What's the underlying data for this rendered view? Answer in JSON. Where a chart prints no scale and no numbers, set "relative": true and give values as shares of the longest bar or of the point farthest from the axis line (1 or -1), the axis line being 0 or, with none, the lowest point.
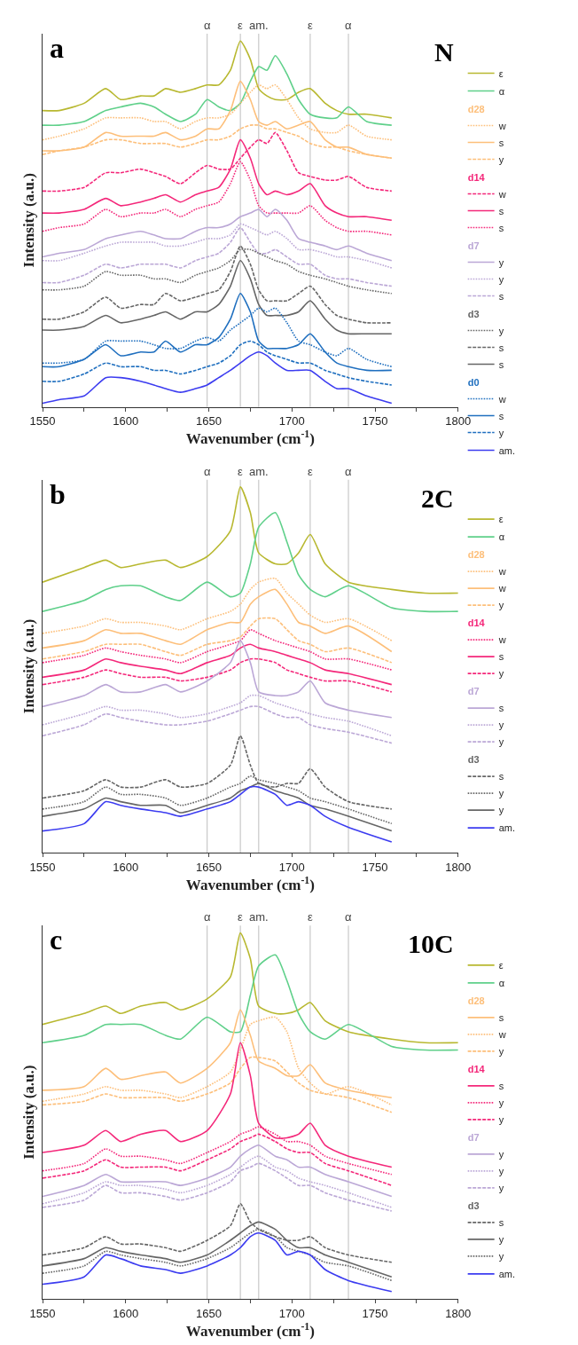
{
  "chart_data": [
    {
      "type": "line",
      "title": "a",
      "subtitle": "N",
      "xlabel": "Wavenumber (cm$^{-1}$)",
      "ylabel": "Intensity (a.u.)",
      "relative": true,
      "legend": "right",
      "grid": false,
      "marker": "none",
      "x": [
        1550,
        1560,
        1575,
        1588,
        1597,
        1609,
        1617,
        1624,
        1633,
        1642,
        1649,
        1656,
        1663,
        1669,
        1675,
        1680,
        1685,
        1690,
        1697,
        1704,
        1711,
        1720,
        1727,
        1734,
        1745,
        1760
      ],
      "xlim": [
        1550,
        1800
      ],
      "xticks": [
        1550,
        {
          "value": 1575,
          "label": null
        },
        1600,
        {
          "value": 1625,
          "label": null
        },
        1650,
        {
          "value": 1675,
          "label": null
        },
        1700,
        {
          "value": 1725,
          "label": null
        },
        1750,
        {
          "value": 1775,
          "label": null
        },
        1800
      ],
      "ref_lines": [
        {
          "axis": "x",
          "value": 1649,
          "label": "α",
          "color": "#c8c8c8"
        },
        {
          "axis": "x",
          "value": 1669,
          "label": "ε",
          "color": "#c8c8c8"
        },
        {
          "axis": "x",
          "value": 1680,
          "label": "am.",
          "color": "#c8c8c8"
        },
        {
          "axis": "x",
          "value": 1711,
          "label": "ε",
          "color": "#c8c8c8"
        },
        {
          "axis": "x",
          "value": 1734,
          "label": "α",
          "color": "#c8c8c8"
        }
      ],
      "annotations": [
        "d28",
        "d14",
        "d7",
        "d3",
        "d0"
      ],
      "series": [
        {
          "name": "ε",
          "color": "#b8b830",
          "line_style": "solid",
          "values": [
            0.81,
            0.81,
            0.83,
            0.87,
            0.84,
            0.85,
            0.85,
            0.87,
            0.86,
            0.87,
            0.88,
            0.88,
            0.92,
            1.0,
            0.95,
            0.87,
            0.85,
            0.84,
            0.84,
            0.86,
            0.87,
            0.83,
            0.81,
            0.8,
            0.8,
            0.79
          ]
        },
        {
          "name": "α",
          "color": "#5fd08a",
          "line_style": "solid",
          "values": [
            0.77,
            0.77,
            0.78,
            0.81,
            0.82,
            0.83,
            0.82,
            0.8,
            0.78,
            0.8,
            0.84,
            0.82,
            0.81,
            0.83,
            0.89,
            0.93,
            0.92,
            0.96,
            0.91,
            0.84,
            0.8,
            0.79,
            0.79,
            0.82,
            0.78,
            0.77
          ]
        },
        {
          "name": "w",
          "color": "#fdbf7a",
          "line_style": "dotted",
          "values": [
            0.73,
            0.74,
            0.76,
            0.79,
            0.79,
            0.79,
            0.78,
            0.78,
            0.76,
            0.78,
            0.79,
            0.79,
            0.8,
            0.83,
            0.86,
            0.88,
            0.87,
            0.88,
            0.84,
            0.79,
            0.76,
            0.75,
            0.75,
            0.77,
            0.74,
            0.73
          ]
        },
        {
          "name": "s",
          "color": "#fdbf7a",
          "line_style": "solid",
          "values": [
            0.7,
            0.7,
            0.71,
            0.75,
            0.74,
            0.74,
            0.74,
            0.75,
            0.73,
            0.74,
            0.76,
            0.76,
            0.81,
            0.89,
            0.84,
            0.78,
            0.77,
            0.78,
            0.76,
            0.77,
            0.78,
            0.73,
            0.71,
            0.71,
            0.69,
            0.68
          ]
        },
        {
          "name": "y",
          "color": "#fdbf7a",
          "line_style": "dashed",
          "values": [
            0.69,
            0.7,
            0.71,
            0.73,
            0.73,
            0.72,
            0.72,
            0.72,
            0.71,
            0.72,
            0.73,
            0.73,
            0.74,
            0.76,
            0.77,
            0.77,
            0.76,
            0.76,
            0.75,
            0.74,
            0.72,
            0.71,
            0.71,
            0.7,
            0.69,
            0.68
          ]
        },
        {
          "name": "w",
          "color": "#f4287a",
          "line_style": "dashed",
          "values": [
            0.59,
            0.59,
            0.6,
            0.64,
            0.64,
            0.65,
            0.64,
            0.63,
            0.61,
            0.64,
            0.66,
            0.65,
            0.65,
            0.68,
            0.71,
            0.73,
            0.72,
            0.75,
            0.7,
            0.64,
            0.63,
            0.62,
            0.62,
            0.63,
            0.6,
            0.59
          ]
        },
        {
          "name": "s",
          "color": "#f4287a",
          "line_style": "solid",
          "values": [
            0.53,
            0.53,
            0.54,
            0.57,
            0.55,
            0.56,
            0.57,
            0.58,
            0.56,
            0.58,
            0.59,
            0.6,
            0.65,
            0.73,
            0.68,
            0.61,
            0.58,
            0.59,
            0.58,
            0.59,
            0.61,
            0.55,
            0.53,
            0.52,
            0.52,
            0.51
          ]
        },
        {
          "name": "s",
          "color": "#f4287a",
          "line_style": "dotted",
          "values": [
            0.48,
            0.49,
            0.5,
            0.54,
            0.52,
            0.53,
            0.53,
            0.54,
            0.52,
            0.54,
            0.55,
            0.56,
            0.61,
            0.67,
            0.62,
            0.55,
            0.53,
            0.53,
            0.53,
            0.53,
            0.55,
            0.51,
            0.49,
            0.48,
            0.48,
            0.47
          ]
        },
        {
          "name": "y",
          "color": "#bba7d6",
          "line_style": "solid",
          "values": [
            0.41,
            0.42,
            0.43,
            0.46,
            0.47,
            0.48,
            0.47,
            0.46,
            0.46,
            0.48,
            0.49,
            0.49,
            0.5,
            0.52,
            0.53,
            0.54,
            0.52,
            0.54,
            0.51,
            0.46,
            0.45,
            0.44,
            0.43,
            0.44,
            0.42,
            0.4
          ]
        },
        {
          "name": "y",
          "color": "#bba7d6",
          "line_style": "dotted",
          "values": [
            0.4,
            0.4,
            0.42,
            0.44,
            0.45,
            0.45,
            0.45,
            0.44,
            0.44,
            0.45,
            0.46,
            0.46,
            0.47,
            0.5,
            0.49,
            0.48,
            0.47,
            0.48,
            0.46,
            0.43,
            0.43,
            0.42,
            0.41,
            0.41,
            0.4,
            0.38
          ]
        },
        {
          "name": "s",
          "color": "#bba7d6",
          "line_style": "dashed",
          "values": [
            0.34,
            0.34,
            0.36,
            0.39,
            0.38,
            0.39,
            0.39,
            0.39,
            0.38,
            0.4,
            0.41,
            0.42,
            0.45,
            0.49,
            0.45,
            0.42,
            0.42,
            0.43,
            0.41,
            0.39,
            0.39,
            0.36,
            0.35,
            0.35,
            0.34,
            0.33
          ]
        },
        {
          "name": "y",
          "color": "#666666",
          "line_style": "dotted",
          "values": [
            0.32,
            0.32,
            0.33,
            0.37,
            0.36,
            0.36,
            0.35,
            0.35,
            0.34,
            0.36,
            0.37,
            0.38,
            0.4,
            0.43,
            0.43,
            0.42,
            0.41,
            0.4,
            0.39,
            0.37,
            0.36,
            0.35,
            0.34,
            0.33,
            0.32,
            0.31
          ]
        },
        {
          "name": "s",
          "color": "#666666",
          "line_style": "dashed",
          "values": [
            0.24,
            0.24,
            0.26,
            0.3,
            0.27,
            0.28,
            0.28,
            0.31,
            0.29,
            0.3,
            0.31,
            0.32,
            0.37,
            0.44,
            0.39,
            0.32,
            0.29,
            0.29,
            0.29,
            0.31,
            0.33,
            0.28,
            0.25,
            0.24,
            0.23,
            0.23
          ]
        },
        {
          "name": "s",
          "color": "#666666",
          "line_style": "solid",
          "values": [
            0.21,
            0.21,
            0.22,
            0.25,
            0.23,
            0.24,
            0.25,
            0.26,
            0.24,
            0.26,
            0.26,
            0.28,
            0.33,
            0.4,
            0.35,
            0.28,
            0.25,
            0.25,
            0.25,
            0.26,
            0.29,
            0.24,
            0.21,
            0.2,
            0.2,
            0.2
          ]
        },
        {
          "name": "w",
          "color": "#1f6fbf",
          "line_style": "dotted",
          "values": [
            0.12,
            0.12,
            0.13,
            0.18,
            0.18,
            0.18,
            0.17,
            0.16,
            0.16,
            0.18,
            0.19,
            0.18,
            0.21,
            0.23,
            0.25,
            0.27,
            0.26,
            0.27,
            0.23,
            0.18,
            0.17,
            0.15,
            0.14,
            0.16,
            0.13,
            0.11
          ]
        },
        {
          "name": "s",
          "color": "#1f6fbf",
          "line_style": "solid",
          "values": [
            0.11,
            0.11,
            0.13,
            0.17,
            0.14,
            0.15,
            0.15,
            0.18,
            0.15,
            0.17,
            0.17,
            0.19,
            0.24,
            0.31,
            0.26,
            0.18,
            0.16,
            0.16,
            0.16,
            0.17,
            0.2,
            0.15,
            0.12,
            0.11,
            0.1,
            0.1
          ]
        },
        {
          "name": "y",
          "color": "#1f6fbf",
          "line_style": "dashed",
          "values": [
            0.07,
            0.07,
            0.09,
            0.12,
            0.11,
            0.11,
            0.1,
            0.1,
            0.09,
            0.1,
            0.11,
            0.12,
            0.14,
            0.17,
            0.18,
            0.17,
            0.15,
            0.14,
            0.13,
            0.12,
            0.12,
            0.1,
            0.09,
            0.08,
            0.07,
            0.06
          ]
        },
        {
          "name": "am.",
          "color": "#3c3cf0",
          "line_style": "solid",
          "values": [
            0.01,
            0.02,
            0.03,
            0.08,
            0.08,
            0.07,
            0.06,
            0.05,
            0.04,
            0.05,
            0.06,
            0.08,
            0.1,
            0.12,
            0.14,
            0.15,
            0.14,
            0.12,
            0.1,
            0.1,
            0.1,
            0.07,
            0.05,
            0.05,
            0.03,
            0.01
          ]
        }
      ]
    },
    {
      "type": "line",
      "title": "b",
      "subtitle": "2C",
      "xlabel": "Wavenumber (cm$^{-1}$)",
      "ylabel": "Intensity (a.u.)",
      "relative": true,
      "legend": "right",
      "grid": false,
      "marker": "none",
      "x": [
        1550,
        1575,
        1588,
        1597,
        1609,
        1624,
        1633,
        1649,
        1663,
        1669,
        1675,
        1680,
        1690,
        1697,
        1704,
        1711,
        1720,
        1734,
        1760
      ],
      "xlim": [
        1550,
        1800
      ],
      "xticks": [
        1550,
        {
          "value": 1575,
          "label": null
        },
        1600,
        {
          "value": 1625,
          "label": null
        },
        1650,
        {
          "value": 1675,
          "label": null
        },
        1700,
        {
          "value": 1725,
          "label": null
        },
        1750,
        {
          "value": 1775,
          "label": null
        },
        1800
      ],
      "ref_lines": [
        {
          "axis": "x",
          "value": 1649,
          "label": "α",
          "color": "#c8c8c8"
        },
        {
          "axis": "x",
          "value": 1669,
          "label": "ε",
          "color": "#c8c8c8"
        },
        {
          "axis": "x",
          "value": 1680,
          "label": "am.",
          "color": "#c8c8c8"
        },
        {
          "axis": "x",
          "value": 1711,
          "label": "ε",
          "color": "#c8c8c8"
        },
        {
          "axis": "x",
          "value": 1734,
          "label": "α",
          "color": "#c8c8c8"
        }
      ],
      "annotations": [
        "d28",
        "d14",
        "d7",
        "d3"
      ],
      "series": [
        {
          "name": "ε",
          "color": "#b8b830",
          "line_style": "solid",
          "x": [
            1550,
            1575,
            1588,
            1597,
            1609,
            1624,
            1633,
            1649,
            1663,
            1669,
            1675,
            1680,
            1690,
            1697,
            1704,
            1711,
            1720,
            1734,
            1760,
            1780,
            1800
          ],
          "values": [
            0.74,
            0.78,
            0.8,
            0.78,
            0.79,
            0.8,
            0.78,
            0.81,
            0.88,
            1.0,
            0.93,
            0.82,
            0.79,
            0.79,
            0.82,
            0.87,
            0.79,
            0.74,
            0.72,
            0.71,
            0.71
          ]
        },
        {
          "name": "α",
          "color": "#5fd08a",
          "line_style": "solid",
          "x": [
            1550,
            1575,
            1588,
            1597,
            1609,
            1624,
            1633,
            1649,
            1663,
            1669,
            1675,
            1680,
            1690,
            1697,
            1704,
            1711,
            1720,
            1734,
            1760,
            1780,
            1800
          ],
          "values": [
            0.66,
            0.69,
            0.72,
            0.73,
            0.73,
            0.7,
            0.69,
            0.74,
            0.7,
            0.71,
            0.79,
            0.89,
            0.93,
            0.85,
            0.76,
            0.72,
            0.7,
            0.73,
            0.67,
            0.66,
            0.66
          ]
        },
        {
          "name": "w",
          "color": "#fdbf7a",
          "line_style": "dotted",
          "values": [
            0.6,
            0.62,
            0.64,
            0.63,
            0.63,
            0.62,
            0.61,
            0.64,
            0.66,
            0.68,
            0.72,
            0.74,
            0.75,
            0.71,
            0.68,
            0.65,
            0.63,
            0.64,
            0.58
          ]
        },
        {
          "name": "w",
          "color": "#fdbf7a",
          "line_style": "solid",
          "values": [
            0.56,
            0.58,
            0.61,
            0.6,
            0.6,
            0.58,
            0.57,
            0.61,
            0.63,
            0.63,
            0.68,
            0.7,
            0.72,
            0.68,
            0.63,
            0.62,
            0.6,
            0.62,
            0.55
          ]
        },
        {
          "name": "y",
          "color": "#fdbf7a",
          "line_style": "dashed",
          "values": [
            0.53,
            0.55,
            0.57,
            0.57,
            0.57,
            0.55,
            0.54,
            0.57,
            0.58,
            0.59,
            0.62,
            0.64,
            0.64,
            0.61,
            0.58,
            0.57,
            0.55,
            0.56,
            0.52
          ]
        },
        {
          "name": "w",
          "color": "#f4287a",
          "line_style": "dotted",
          "values": [
            0.52,
            0.54,
            0.56,
            0.55,
            0.54,
            0.53,
            0.52,
            0.55,
            0.57,
            0.58,
            0.61,
            0.6,
            0.58,
            0.57,
            0.56,
            0.55,
            0.53,
            0.53,
            0.5
          ]
        },
        {
          "name": "s",
          "color": "#f4287a",
          "line_style": "solid",
          "values": [
            0.48,
            0.5,
            0.53,
            0.52,
            0.51,
            0.5,
            0.49,
            0.52,
            0.54,
            0.56,
            0.57,
            0.56,
            0.55,
            0.54,
            0.53,
            0.52,
            0.5,
            0.49,
            0.46
          ]
        },
        {
          "name": "y",
          "color": "#f4287a",
          "line_style": "dashed",
          "values": [
            0.46,
            0.48,
            0.5,
            0.49,
            0.48,
            0.48,
            0.47,
            0.48,
            0.5,
            0.52,
            0.53,
            0.53,
            0.52,
            0.5,
            0.49,
            0.48,
            0.47,
            0.47,
            0.44
          ]
        },
        {
          "name": "s",
          "color": "#bba7d6",
          "line_style": "solid",
          "values": [
            0.4,
            0.43,
            0.46,
            0.44,
            0.44,
            0.46,
            0.44,
            0.47,
            0.52,
            0.58,
            0.52,
            0.44,
            0.43,
            0.43,
            0.44,
            0.47,
            0.41,
            0.39,
            0.37
          ]
        },
        {
          "name": "y",
          "color": "#bba7d6",
          "line_style": "dotted",
          "values": [
            0.35,
            0.38,
            0.4,
            0.39,
            0.39,
            0.38,
            0.37,
            0.38,
            0.4,
            0.41,
            0.43,
            0.43,
            0.41,
            0.4,
            0.39,
            0.38,
            0.37,
            0.36,
            0.32
          ]
        },
        {
          "name": "y",
          "color": "#bba7d6",
          "line_style": "dashed",
          "values": [
            0.32,
            0.35,
            0.38,
            0.37,
            0.36,
            0.35,
            0.35,
            0.36,
            0.38,
            0.39,
            0.4,
            0.4,
            0.38,
            0.37,
            0.37,
            0.35,
            0.34,
            0.33,
            0.3
          ]
        },
        {
          "name": "s",
          "color": "#666666",
          "line_style": "dashed",
          "values": [
            0.15,
            0.17,
            0.2,
            0.18,
            0.18,
            0.2,
            0.18,
            0.19,
            0.24,
            0.32,
            0.24,
            0.19,
            0.18,
            0.19,
            0.19,
            0.23,
            0.18,
            0.14,
            0.12
          ]
        },
        {
          "name": "y",
          "color": "#666666",
          "line_style": "dotted",
          "values": [
            0.12,
            0.14,
            0.18,
            0.16,
            0.16,
            0.15,
            0.13,
            0.15,
            0.18,
            0.19,
            0.21,
            0.2,
            0.19,
            0.18,
            0.17,
            0.15,
            0.14,
            0.12,
            0.08
          ]
        },
        {
          "name": "y",
          "color": "#666666",
          "line_style": "solid",
          "values": [
            0.1,
            0.12,
            0.15,
            0.14,
            0.13,
            0.13,
            0.11,
            0.13,
            0.15,
            0.17,
            0.18,
            0.19,
            0.17,
            0.16,
            0.15,
            0.13,
            0.12,
            0.1,
            0.06
          ]
        },
        {
          "name": "am.",
          "color": "#3c3cf0",
          "line_style": "solid",
          "values": [
            0.06,
            0.08,
            0.14,
            0.13,
            0.12,
            0.11,
            0.1,
            0.12,
            0.14,
            0.16,
            0.18,
            0.18,
            0.16,
            0.13,
            0.14,
            0.13,
            0.1,
            0.07,
            0.03
          ]
        }
      ]
    },
    {
      "type": "line",
      "title": "c",
      "subtitle": "10C",
      "xlabel": "Wavenumber (cm$^{-1}$)",
      "ylabel": "Intensity (a.u.)",
      "relative": true,
      "legend": "right",
      "grid": false,
      "marker": "none",
      "x": [
        1550,
        1575,
        1588,
        1597,
        1609,
        1624,
        1633,
        1649,
        1663,
        1669,
        1675,
        1680,
        1690,
        1697,
        1704,
        1711,
        1720,
        1734,
        1760
      ],
      "xlim": [
        1550,
        1800
      ],
      "xticks": [
        1550,
        {
          "value": 1575,
          "label": null
        },
        1600,
        {
          "value": 1625,
          "label": null
        },
        1650,
        {
          "value": 1675,
          "label": null
        },
        1700,
        {
          "value": 1725,
          "label": null
        },
        1750,
        {
          "value": 1775,
          "label": null
        },
        1800
      ],
      "ref_lines": [
        {
          "axis": "x",
          "value": 1649,
          "label": "α",
          "color": "#c8c8c8"
        },
        {
          "axis": "x",
          "value": 1669,
          "label": "ε",
          "color": "#c8c8c8"
        },
        {
          "axis": "x",
          "value": 1680,
          "label": "am.",
          "color": "#c8c8c8"
        },
        {
          "axis": "x",
          "value": 1711,
          "label": "ε",
          "color": "#c8c8c8"
        },
        {
          "axis": "x",
          "value": 1734,
          "label": "α",
          "color": "#c8c8c8"
        }
      ],
      "annotations": [
        "d28",
        "d14",
        "d7",
        "d3"
      ],
      "series": [
        {
          "name": "ε",
          "color": "#b8b830",
          "line_style": "solid",
          "x": [
            1550,
            1575,
            1588,
            1597,
            1609,
            1624,
            1633,
            1649,
            1663,
            1669,
            1675,
            1680,
            1690,
            1697,
            1704,
            1711,
            1720,
            1734,
            1760,
            1780,
            1800
          ],
          "values": [
            0.75,
            0.78,
            0.8,
            0.78,
            0.8,
            0.81,
            0.79,
            0.82,
            0.88,
            1.0,
            0.93,
            0.8,
            0.78,
            0.78,
            0.79,
            0.81,
            0.76,
            0.73,
            0.71,
            0.7,
            0.7
          ]
        },
        {
          "name": "α",
          "color": "#5fd08a",
          "line_style": "solid",
          "x": [
            1550,
            1575,
            1588,
            1597,
            1609,
            1624,
            1633,
            1649,
            1663,
            1669,
            1675,
            1680,
            1690,
            1697,
            1704,
            1711,
            1720,
            1734,
            1760,
            1780,
            1800
          ],
          "values": [
            0.7,
            0.72,
            0.75,
            0.75,
            0.75,
            0.72,
            0.71,
            0.77,
            0.73,
            0.73,
            0.83,
            0.91,
            0.94,
            0.87,
            0.78,
            0.73,
            0.71,
            0.75,
            0.69,
            0.68,
            0.68
          ]
        },
        {
          "name": "s",
          "color": "#fdbf7a",
          "line_style": "solid",
          "values": [
            0.57,
            0.58,
            0.63,
            0.6,
            0.61,
            0.62,
            0.59,
            0.63,
            0.7,
            0.79,
            0.72,
            0.65,
            0.63,
            0.61,
            0.61,
            0.64,
            0.59,
            0.57,
            0.55
          ]
        },
        {
          "name": "w",
          "color": "#fdbf7a",
          "line_style": "dotted",
          "values": [
            0.54,
            0.56,
            0.58,
            0.57,
            0.57,
            0.56,
            0.55,
            0.58,
            0.62,
            0.68,
            0.75,
            0.76,
            0.77,
            0.73,
            0.63,
            0.59,
            0.56,
            0.58,
            0.53
          ]
        },
        {
          "name": "y",
          "color": "#fdbf7a",
          "line_style": "dashed",
          "values": [
            0.53,
            0.54,
            0.56,
            0.55,
            0.55,
            0.55,
            0.54,
            0.56,
            0.59,
            0.63,
            0.66,
            0.66,
            0.65,
            0.62,
            0.59,
            0.57,
            0.56,
            0.55,
            0.51
          ]
        },
        {
          "name": "s",
          "color": "#f4287a",
          "line_style": "solid",
          "values": [
            0.4,
            0.42,
            0.46,
            0.43,
            0.45,
            0.46,
            0.43,
            0.46,
            0.56,
            0.7,
            0.61,
            0.48,
            0.44,
            0.44,
            0.45,
            0.48,
            0.42,
            0.39,
            0.36
          ]
        },
        {
          "name": "y",
          "color": "#f4287a",
          "line_style": "dotted",
          "values": [
            0.35,
            0.37,
            0.41,
            0.39,
            0.39,
            0.38,
            0.37,
            0.4,
            0.43,
            0.45,
            0.46,
            0.47,
            0.45,
            0.43,
            0.43,
            0.42,
            0.39,
            0.37,
            0.34
          ]
        },
        {
          "name": "y",
          "color": "#f4287a",
          "line_style": "dashed",
          "values": [
            0.33,
            0.35,
            0.38,
            0.36,
            0.36,
            0.36,
            0.35,
            0.38,
            0.41,
            0.43,
            0.44,
            0.45,
            0.43,
            0.41,
            0.4,
            0.4,
            0.37,
            0.35,
            0.31
          ]
        },
        {
          "name": "y",
          "color": "#bba7d6",
          "line_style": "solid",
          "values": [
            0.28,
            0.31,
            0.34,
            0.32,
            0.32,
            0.32,
            0.31,
            0.33,
            0.36,
            0.39,
            0.41,
            0.42,
            0.39,
            0.38,
            0.36,
            0.36,
            0.34,
            0.32,
            0.28
          ]
        },
        {
          "name": "y",
          "color": "#bba7d6",
          "line_style": "dotted",
          "values": [
            0.26,
            0.29,
            0.32,
            0.31,
            0.31,
            0.3,
            0.29,
            0.31,
            0.34,
            0.36,
            0.38,
            0.39,
            0.36,
            0.35,
            0.33,
            0.32,
            0.31,
            0.29,
            0.25
          ]
        },
        {
          "name": "y",
          "color": "#bba7d6",
          "line_style": "dashed",
          "values": [
            0.25,
            0.27,
            0.31,
            0.29,
            0.29,
            0.28,
            0.27,
            0.29,
            0.32,
            0.35,
            0.36,
            0.37,
            0.35,
            0.33,
            0.31,
            0.31,
            0.29,
            0.27,
            0.24
          ]
        },
        {
          "name": "s",
          "color": "#666666",
          "line_style": "dashed",
          "values": [
            0.12,
            0.14,
            0.17,
            0.15,
            0.15,
            0.14,
            0.13,
            0.16,
            0.2,
            0.26,
            0.21,
            0.19,
            0.17,
            0.16,
            0.16,
            0.17,
            0.14,
            0.12,
            0.1
          ]
        },
        {
          "name": "y",
          "color": "#666666",
          "line_style": "solid",
          "values": [
            0.09,
            0.11,
            0.14,
            0.13,
            0.12,
            0.11,
            0.1,
            0.12,
            0.16,
            0.18,
            0.2,
            0.21,
            0.19,
            0.16,
            0.14,
            0.14,
            0.12,
            0.1,
            0.06
          ]
        },
        {
          "name": "y",
          "color": "#666666",
          "line_style": "dotted",
          "values": [
            0.07,
            0.09,
            0.13,
            0.12,
            0.11,
            0.1,
            0.09,
            0.11,
            0.14,
            0.16,
            0.18,
            0.19,
            0.17,
            0.14,
            0.13,
            0.12,
            0.1,
            0.09,
            0.05
          ]
        },
        {
          "name": "am.",
          "color": "#3c3cf0",
          "line_style": "solid",
          "values": [
            0.04,
            0.06,
            0.12,
            0.11,
            0.09,
            0.08,
            0.07,
            0.09,
            0.12,
            0.14,
            0.17,
            0.18,
            0.16,
            0.12,
            0.13,
            0.12,
            0.08,
            0.05,
            0.02
          ]
        }
      ]
    }
  ]
}
